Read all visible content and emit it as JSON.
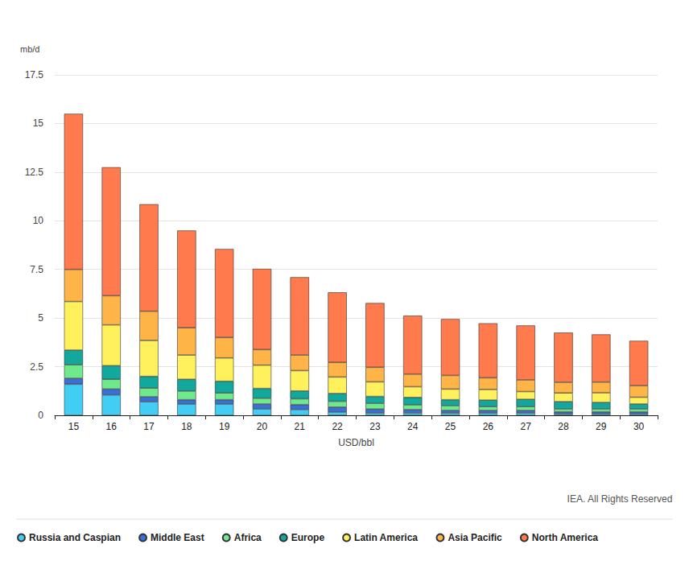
{
  "chart_data": {
    "type": "bar",
    "y_label": "mb/d",
    "x_label": "USD/bbl",
    "source": "IEA. All Rights Reserved",
    "stacked": true,
    "grid": true,
    "legend": "bottom left",
    "categories": [
      "15",
      "16",
      "17",
      "18",
      "19",
      "20",
      "21",
      "22",
      "23",
      "24",
      "25",
      "26",
      "27",
      "28",
      "29",
      "30"
    ],
    "ylim": [
      0,
      17.5
    ],
    "yticks": [
      0,
      2.5,
      5,
      7.5,
      10,
      12.5,
      15,
      17.5
    ],
    "series": [
      {
        "name": "Russia and Caspian",
        "color": "#41cdf4",
        "values": [
          1.6,
          1.05,
          0.7,
          0.58,
          0.58,
          0.33,
          0.3,
          0.17,
          0.12,
          0.12,
          0.12,
          0.12,
          0.12,
          0.08,
          0.08,
          0.08
        ]
      },
      {
        "name": "Middle East",
        "color": "#3a6fd8",
        "values": [
          0.3,
          0.3,
          0.25,
          0.22,
          0.22,
          0.25,
          0.25,
          0.25,
          0.2,
          0.17,
          0.13,
          0.13,
          0.13,
          0.1,
          0.1,
          0.1
        ]
      },
      {
        "name": "Africa",
        "color": "#6fe98c",
        "values": [
          0.7,
          0.5,
          0.45,
          0.45,
          0.35,
          0.3,
          0.3,
          0.3,
          0.3,
          0.25,
          0.25,
          0.2,
          0.2,
          0.15,
          0.15,
          0.15
        ]
      },
      {
        "name": "Europe",
        "color": "#13a89e",
        "values": [
          0.75,
          0.7,
          0.6,
          0.6,
          0.6,
          0.5,
          0.4,
          0.4,
          0.35,
          0.38,
          0.3,
          0.33,
          0.37,
          0.37,
          0.33,
          0.25
        ]
      },
      {
        "name": "Latin America",
        "color": "#fff15c",
        "values": [
          2.5,
          2.1,
          1.85,
          1.25,
          1.2,
          1.2,
          1.05,
          0.85,
          0.75,
          0.55,
          0.55,
          0.55,
          0.4,
          0.45,
          0.5,
          0.35
        ]
      },
      {
        "name": "Asia Pacific",
        "color": "#ffb448",
        "values": [
          1.65,
          1.5,
          1.5,
          1.4,
          1.05,
          0.8,
          0.8,
          0.75,
          0.75,
          0.65,
          0.7,
          0.6,
          0.6,
          0.55,
          0.55,
          0.6
        ]
      },
      {
        "name": "North America",
        "color": "#ff7a4d",
        "values": [
          8.0,
          6.6,
          5.5,
          5.0,
          4.55,
          4.15,
          4.0,
          3.6,
          3.3,
          3.0,
          2.9,
          2.8,
          2.8,
          2.55,
          2.45,
          2.3
        ]
      }
    ]
  }
}
